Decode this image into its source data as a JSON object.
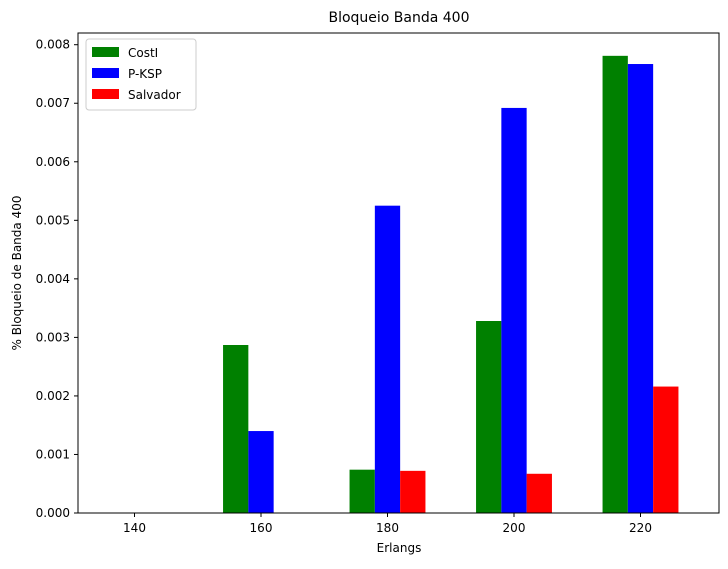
{
  "chart_data": {
    "type": "bar",
    "title": "Bloqueio Banda 400",
    "xlabel": "Erlangs",
    "ylabel": "% Bloqueio de Banda 400",
    "categories": [
      "140",
      "160",
      "180",
      "200",
      "220"
    ],
    "series": [
      {
        "name": "CostI",
        "color": "#008000",
        "values": [
          0,
          0.00287,
          0.00074,
          0.00328,
          0.00781
        ]
      },
      {
        "name": "P-KSP",
        "color": "#0000ff",
        "values": [
          0,
          0.0014,
          0.00525,
          0.00692,
          0.00767
        ]
      },
      {
        "name": "Salvador",
        "color": "#ff0000",
        "values": [
          0,
          0,
          0.00072,
          0.00067,
          0.00216
        ]
      }
    ],
    "ylim": [
      0,
      0.0082
    ],
    "yticks": [
      "0.000",
      "0.001",
      "0.002",
      "0.003",
      "0.004",
      "0.005",
      "0.006",
      "0.007",
      "0.008"
    ],
    "grid": false,
    "legend_position": "top-left"
  }
}
